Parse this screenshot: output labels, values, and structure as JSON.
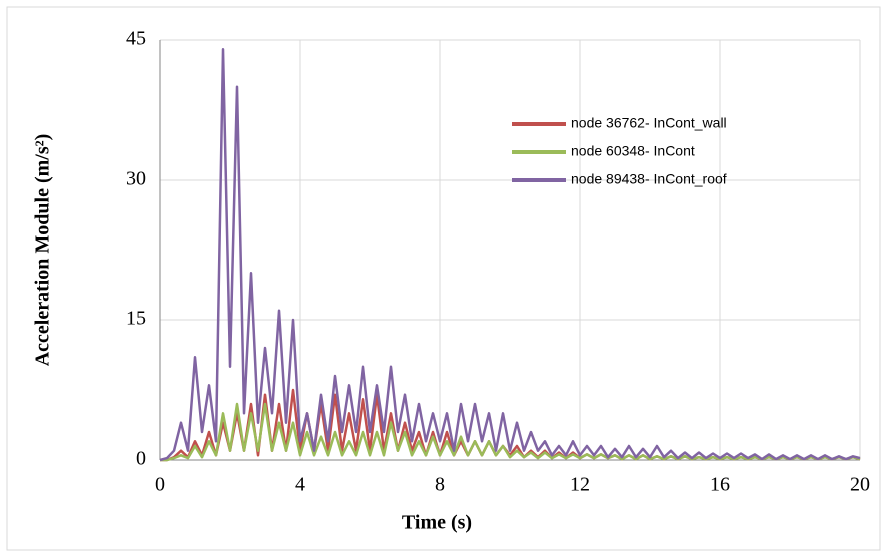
{
  "chart_data": {
    "type": "line",
    "xlabel": "Time (s)",
    "ylabel": "Acceleration Module (m/s²)",
    "x": [
      0,
      0.2,
      0.4,
      0.6,
      0.8,
      1,
      1.2,
      1.4,
      1.6,
      1.8,
      2,
      2.2,
      2.4,
      2.6,
      2.8,
      3,
      3.2,
      3.4,
      3.6,
      3.8,
      4,
      4.2,
      4.4,
      4.6,
      4.8,
      5,
      5.2,
      5.4,
      5.6,
      5.8,
      6,
      6.2,
      6.4,
      6.6,
      6.8,
      7,
      7.2,
      7.4,
      7.6,
      7.8,
      8,
      8.2,
      8.4,
      8.6,
      8.8,
      9,
      9.2,
      9.4,
      9.6,
      9.8,
      10,
      10.2,
      10.4,
      10.6,
      10.8,
      11,
      11.2,
      11.4,
      11.6,
      11.8,
      12,
      12.2,
      12.4,
      12.6,
      12.8,
      13,
      13.2,
      13.4,
      13.6,
      13.8,
      14,
      14.2,
      14.4,
      14.6,
      14.8,
      15,
      15.2,
      15.4,
      15.6,
      15.8,
      16,
      16.2,
      16.4,
      16.6,
      16.8,
      17,
      17.2,
      17.4,
      17.6,
      17.8,
      18,
      18.2,
      18.4,
      18.6,
      18.8,
      19,
      19.2,
      19.4,
      19.6,
      19.8,
      20
    ],
    "series": [
      {
        "name": "node 36762- InCont_wall",
        "color": "#c0504d",
        "values": [
          0,
          0,
          0.3,
          1,
          0.3,
          2,
          0.5,
          3,
          0.5,
          4,
          1,
          5,
          1,
          6,
          0.5,
          7,
          1,
          6,
          1,
          7.5,
          1,
          5,
          1,
          6,
          1,
          7,
          1,
          5,
          1,
          6.5,
          1,
          7,
          1,
          5,
          1,
          4,
          1,
          3,
          0.5,
          3,
          0.5,
          3,
          0.5,
          2,
          0.5,
          2,
          0.5,
          2,
          0.5,
          1.5,
          0.5,
          1.5,
          0.3,
          1,
          0.3,
          1,
          0.2,
          0.8,
          0.2,
          0.8,
          0.2,
          0.6,
          0.2,
          0.6,
          0.2,
          0.5,
          0.1,
          0.5,
          0.1,
          0.5,
          0.1,
          0.4,
          0.1,
          0.4,
          0.1,
          0.4,
          0.1,
          0.3,
          0.1,
          0.3,
          0.1,
          0.3,
          0.1,
          0.3,
          0.1,
          0.3,
          0.1,
          0.3,
          0.1,
          0.3,
          0.1,
          0.3,
          0.1,
          0.3,
          0.1,
          0.3,
          0.1,
          0.3,
          0.1,
          0.3,
          0.1
        ]
      },
      {
        "name": "node 60348- InCont",
        "color": "#9bbb59",
        "values": [
          0,
          0,
          0.2,
          0.5,
          0.2,
          1.5,
          0.3,
          2,
          0.5,
          5,
          1,
          6,
          1,
          5,
          1,
          6,
          1,
          4,
          1,
          4,
          0.5,
          3,
          0.5,
          2.5,
          0.5,
          3,
          0.5,
          2,
          0.5,
          3,
          0.5,
          3,
          0.5,
          4,
          1,
          3,
          0.5,
          2,
          0.5,
          2.5,
          0.5,
          2,
          0.5,
          2.5,
          0.5,
          2,
          0.5,
          2,
          0.5,
          1.5,
          0.3,
          1,
          0.3,
          0.8,
          0.2,
          0.8,
          0.2,
          0.6,
          0.2,
          0.6,
          0.2,
          0.6,
          0.2,
          0.6,
          0.2,
          0.5,
          0.1,
          0.5,
          0.1,
          0.5,
          0.1,
          0.4,
          0.1,
          0.4,
          0.1,
          0.4,
          0.1,
          0.3,
          0.1,
          0.3,
          0.1,
          0.3,
          0.1,
          0.3,
          0.1,
          0.3,
          0.1,
          0.3,
          0.1,
          0.3,
          0.1,
          0.3,
          0.1,
          0.3,
          0.1,
          0.3,
          0.1,
          0.3,
          0.1,
          0.3,
          0.1
        ]
      },
      {
        "name": "node 89438- InCont_roof",
        "color": "#8064a2",
        "values": [
          0,
          0.2,
          1,
          4,
          1,
          11,
          3,
          8,
          2,
          44,
          10,
          40,
          5,
          20,
          4,
          12,
          5,
          16,
          4,
          15,
          2,
          5,
          1,
          7,
          2,
          9,
          3,
          8,
          3,
          10,
          3,
          8,
          3,
          10,
          3,
          7,
          2,
          6,
          2,
          5,
          2,
          5,
          1,
          6,
          2,
          6,
          2,
          5,
          1,
          5,
          1,
          4,
          1,
          3,
          1,
          2,
          0.5,
          1.5,
          0.5,
          2,
          0.5,
          1.5,
          0.5,
          1.5,
          0.3,
          1.2,
          0.3,
          1.5,
          0.3,
          1.2,
          0.3,
          1.5,
          0.3,
          1,
          0.2,
          0.8,
          0.2,
          0.8,
          0.2,
          0.7,
          0.2,
          0.7,
          0.2,
          0.7,
          0.2,
          0.6,
          0.1,
          0.6,
          0.1,
          0.5,
          0.1,
          0.5,
          0.1,
          0.5,
          0.1,
          0.5,
          0.1,
          0.4,
          0.1,
          0.4,
          0.2
        ]
      }
    ],
    "xlim": [
      0,
      20
    ],
    "xticks": [
      0,
      4,
      8,
      12,
      16,
      20
    ],
    "ylim": [
      0,
      45
    ],
    "yticks": [
      0,
      15,
      30,
      45
    ],
    "grid": true,
    "legend": "upper right"
  }
}
